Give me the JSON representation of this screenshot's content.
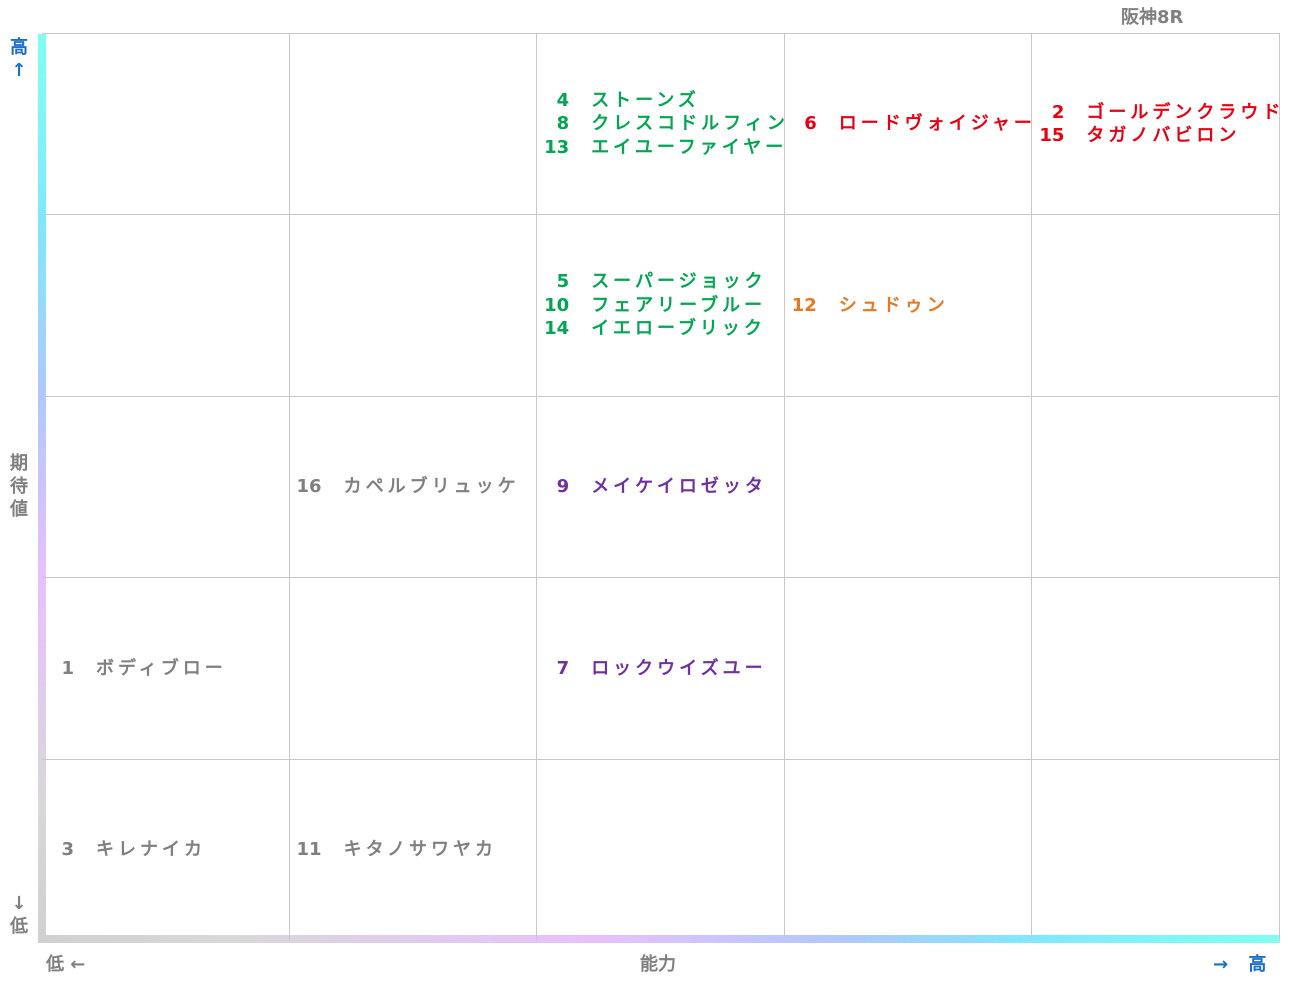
{
  "header": {
    "title": "阪神8R"
  },
  "y_axis": {
    "title": "期待値",
    "high": "高↑",
    "low": "↓低"
  },
  "x_axis": {
    "title": "能力",
    "low": "低 ←",
    "high": "→ 高"
  },
  "grid": {
    "rows": [
      [
        {
          "entries": []
        },
        {
          "entries": []
        },
        {
          "color": "#00a651",
          "entries": [
            {
              "number": "4",
              "name": "ストーンズ"
            },
            {
              "number": "8",
              "name": "クレスコドルフィン"
            },
            {
              "number": "13",
              "name": "エイユーファイヤー"
            }
          ]
        },
        {
          "color": "#e60012",
          "entries": [
            {
              "number": "6",
              "name": "ロードヴォイジャー"
            }
          ]
        },
        {
          "color": "#e60012",
          "entries": [
            {
              "number": "2",
              "name": "ゴールデンクラウド"
            },
            {
              "number": "15",
              "name": "タガノバビロン"
            }
          ]
        }
      ],
      [
        {
          "entries": []
        },
        {
          "entries": []
        },
        {
          "color": "#00a651",
          "entries": [
            {
              "number": "5",
              "name": "スーパージョック"
            },
            {
              "number": "10",
              "name": "フェアリーブルー"
            },
            {
              "number": "14",
              "name": "イエローブリック"
            }
          ]
        },
        {
          "color": "#e87722",
          "entries": [
            {
              "number": "12",
              "name": "シュドゥン"
            }
          ]
        },
        {
          "entries": []
        }
      ],
      [
        {
          "entries": []
        },
        {
          "color": "#808080",
          "entries": [
            {
              "number": "16",
              "name": "カペルブリュッケ"
            }
          ]
        },
        {
          "color": "#7030a0",
          "entries": [
            {
              "number": "9",
              "name": "メイケイロゼッタ"
            }
          ]
        },
        {
          "entries": []
        },
        {
          "entries": []
        }
      ],
      [
        {
          "color": "#808080",
          "entries": [
            {
              "number": "1",
              "name": "ボディブロー"
            }
          ]
        },
        {
          "entries": []
        },
        {
          "color": "#7030a0",
          "entries": [
            {
              "number": "7",
              "name": "ロックウイズユー"
            }
          ]
        },
        {
          "entries": []
        },
        {
          "entries": []
        }
      ],
      [
        {
          "color": "#808080",
          "entries": [
            {
              "number": "3",
              "name": "キレナイカ"
            }
          ]
        },
        {
          "color": "#808080",
          "entries": [
            {
              "number": "11",
              "name": "キタノサワヤカ"
            }
          ]
        },
        {
          "entries": []
        },
        {
          "entries": []
        },
        {
          "entries": []
        }
      ]
    ]
  }
}
